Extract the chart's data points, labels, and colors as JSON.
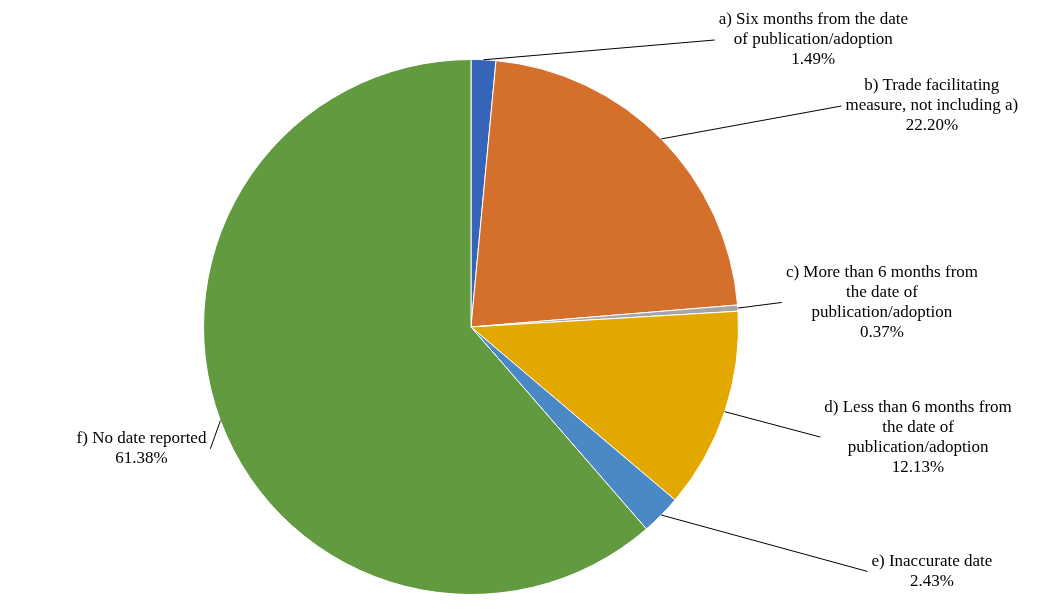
{
  "chart_data": {
    "type": "pie",
    "categories": [
      "a) Six months from the date of publication/adoption",
      "b) Trade facilitating measure, not including a)",
      "c) More than 6 months from the date of publication/adoption",
      "d) Less than 6 months from the date of publication/adoption",
      "e) Inaccurate date",
      "f) No date reported"
    ],
    "values": [
      1.49,
      22.2,
      0.37,
      12.13,
      2.43,
      61.38
    ],
    "value_labels": [
      "1.49%",
      "22.20%",
      "0.37%",
      "12.13%",
      "2.43%",
      "61.38%"
    ],
    "colors": [
      "#3564b8",
      "#d4702b",
      "#a5a5a5",
      "#e2a800",
      "#4a88c6",
      "#629a3f"
    ],
    "legend": false
  }
}
